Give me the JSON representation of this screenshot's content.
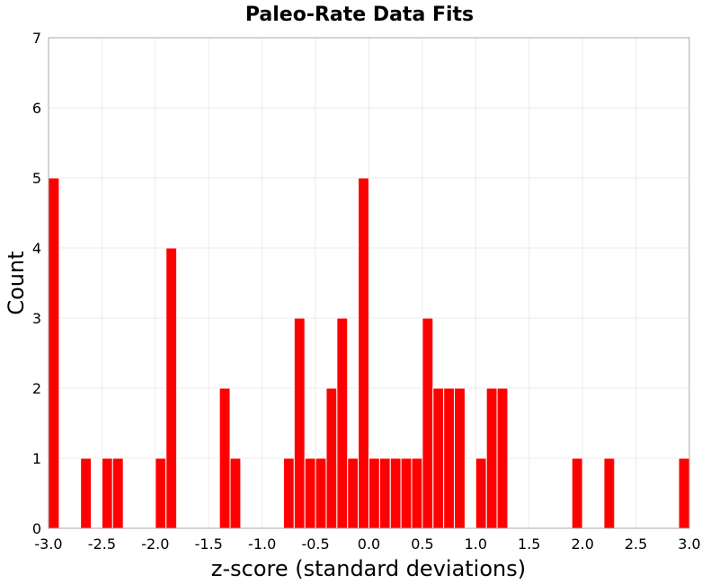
{
  "chart_data": {
    "type": "bar",
    "title": "Paleo-Rate Data Fits",
    "xlabel": "z-score (standard deviations)",
    "ylabel": "Count",
    "xlim": [
      -3.0,
      3.0
    ],
    "ylim": [
      0,
      7
    ],
    "bin_width": 0.1,
    "grid": true,
    "bar_color": "#ff0000",
    "x_ticks": [
      "-3.0",
      "-2.5",
      "-2.0",
      "-1.5",
      "-1.0",
      "-0.5",
      "0.0",
      "0.5",
      "1.0",
      "1.5",
      "2.0",
      "2.5",
      "3.0"
    ],
    "y_ticks": [
      "0",
      "1",
      "2",
      "3",
      "4",
      "5",
      "6",
      "7"
    ],
    "bins": [
      {
        "x": -3.0,
        "count": 5
      },
      {
        "x": -2.7,
        "count": 1
      },
      {
        "x": -2.5,
        "count": 1
      },
      {
        "x": -2.4,
        "count": 1
      },
      {
        "x": -2.0,
        "count": 1
      },
      {
        "x": -1.9,
        "count": 4
      },
      {
        "x": -1.4,
        "count": 2
      },
      {
        "x": -1.3,
        "count": 1
      },
      {
        "x": -0.8,
        "count": 1
      },
      {
        "x": -0.7,
        "count": 3
      },
      {
        "x": -0.6,
        "count": 1
      },
      {
        "x": -0.5,
        "count": 1
      },
      {
        "x": -0.4,
        "count": 2
      },
      {
        "x": -0.3,
        "count": 3
      },
      {
        "x": -0.2,
        "count": 1
      },
      {
        "x": -0.1,
        "count": 5
      },
      {
        "x": 0.0,
        "count": 1
      },
      {
        "x": 0.1,
        "count": 1
      },
      {
        "x": 0.2,
        "count": 1
      },
      {
        "x": 0.3,
        "count": 1
      },
      {
        "x": 0.4,
        "count": 1
      },
      {
        "x": 0.5,
        "count": 3
      },
      {
        "x": 0.6,
        "count": 2
      },
      {
        "x": 0.7,
        "count": 2
      },
      {
        "x": 0.8,
        "count": 2
      },
      {
        "x": 1.0,
        "count": 1
      },
      {
        "x": 1.1,
        "count": 2
      },
      {
        "x": 1.2,
        "count": 2
      },
      {
        "x": 1.9,
        "count": 1
      },
      {
        "x": 2.2,
        "count": 1
      },
      {
        "x": 2.9,
        "count": 1
      }
    ]
  }
}
